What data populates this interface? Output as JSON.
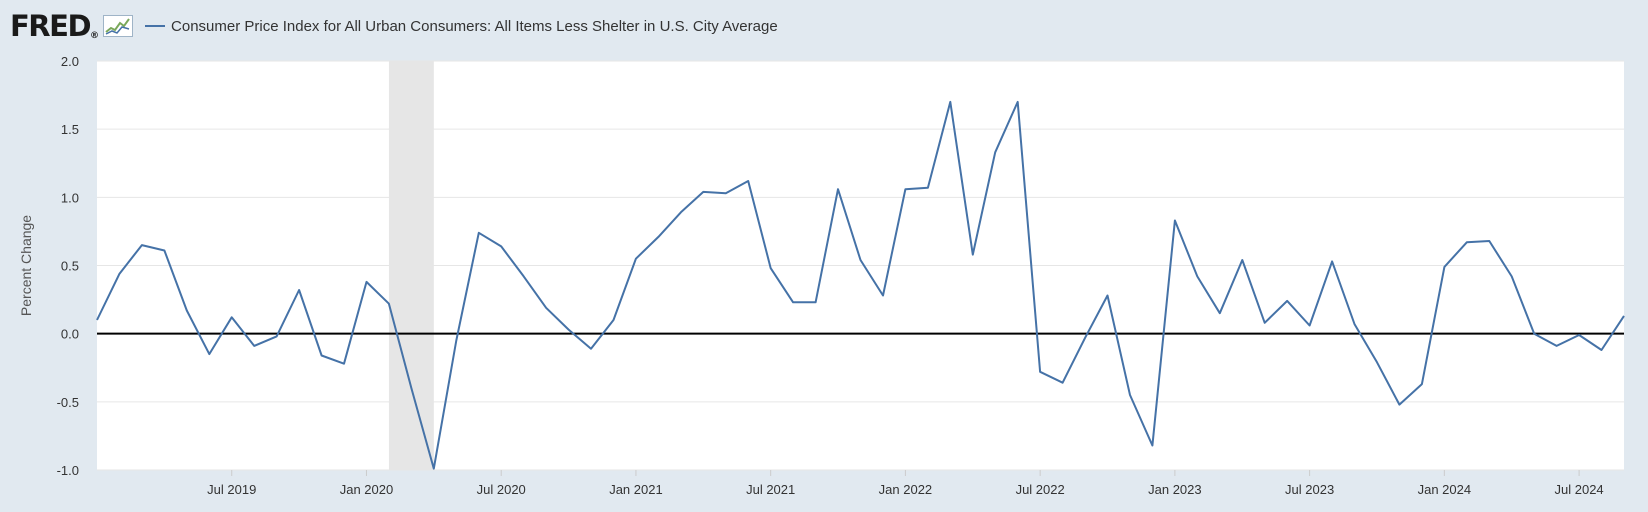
{
  "header": {
    "logo_text": "FRED",
    "logo_registered": "®",
    "legend_label": "Consumer Price Index for All Urban Consumers: All Items Less Shelter in U.S. City Average"
  },
  "chart_data": {
    "type": "line",
    "title": "Consumer Price Index for All Urban Consumers: All Items Less Shelter in U.S. City Average",
    "xlabel": "",
    "ylabel": "Percent Change",
    "ylim": [
      -1.0,
      2.0
    ],
    "yticks": [
      2.0,
      1.5,
      1.0,
      0.5,
      0.0,
      -0.5,
      -1.0
    ],
    "ytick_labels": [
      "2.0",
      "1.5",
      "1.0",
      "0.5",
      "0.0",
      "-0.5",
      "-1.0"
    ],
    "xlim": [
      0,
      68
    ],
    "xticks": [
      {
        "index": 6,
        "label": "Jul 2019"
      },
      {
        "index": 12,
        "label": "Jan 2020"
      },
      {
        "index": 18,
        "label": "Jul 2020"
      },
      {
        "index": 24,
        "label": "Jan 2021"
      },
      {
        "index": 30,
        "label": "Jul 2021"
      },
      {
        "index": 36,
        "label": "Jan 2022"
      },
      {
        "index": 42,
        "label": "Jul 2022"
      },
      {
        "index": 48,
        "label": "Jan 2023"
      },
      {
        "index": 54,
        "label": "Jul 2023"
      },
      {
        "index": 60,
        "label": "Jan 2024"
      },
      {
        "index": 66,
        "label": "Jul 2024"
      }
    ],
    "recession": {
      "start": 13,
      "end": 15
    },
    "zero_line": 0.0,
    "grid": true,
    "colors": {
      "series": "#4572a7",
      "zero_line": "#000000",
      "recession": "#e6e6e6",
      "grid": "#e6e6e6",
      "plot_bg": "#ffffff"
    },
    "series": [
      {
        "name": "Consumer Price Index for All Urban Consumers: All Items Less Shelter in U.S. City Average",
        "values": [
          0.1,
          0.44,
          0.65,
          0.61,
          0.17,
          -0.15,
          0.12,
          -0.09,
          -0.02,
          0.32,
          -0.16,
          -0.22,
          0.38,
          0.22,
          -0.4,
          -0.99,
          -0.05,
          0.74,
          0.64,
          0.42,
          0.19,
          0.03,
          -0.11,
          0.1,
          0.55,
          0.71,
          0.89,
          1.04,
          1.03,
          1.12,
          0.48,
          0.23,
          0.23,
          1.06,
          0.54,
          0.28,
          1.06,
          1.07,
          1.7,
          0.58,
          1.33,
          1.7,
          -0.28,
          -0.36,
          -0.03,
          0.28,
          -0.45,
          -0.82,
          0.83,
          0.42,
          0.15,
          0.54,
          0.08,
          0.24,
          0.06,
          0.53,
          0.07,
          -0.21,
          -0.52,
          -0.37,
          0.49,
          0.67,
          0.68,
          0.42,
          0.0,
          -0.09,
          -0.01,
          -0.12,
          0.13
        ]
      }
    ]
  }
}
